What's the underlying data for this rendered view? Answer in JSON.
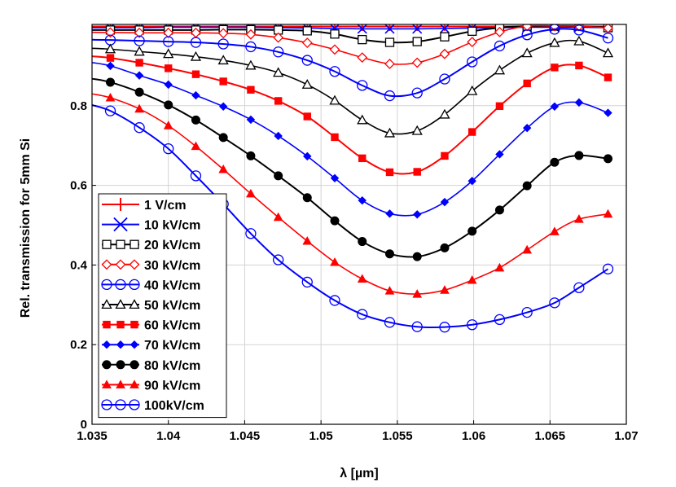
{
  "chart_data": {
    "type": "line",
    "title": "",
    "xlabel": "λ [µm]",
    "ylabel": "Rel. transmission for 5mm Si",
    "xlim": [
      1.035,
      1.07
    ],
    "ylim": [
      0,
      1.0
    ],
    "xticks": [
      1.035,
      1.04,
      1.045,
      1.05,
      1.055,
      1.06,
      1.065,
      1.07
    ],
    "xtick_labels": [
      "1.035",
      "1.04",
      "1.045",
      "1.05",
      "1.055",
      "1.06",
      "1.065",
      "1.07"
    ],
    "yticks": [
      0,
      0.2,
      0.4,
      0.6,
      0.8
    ],
    "ytick_labels": [
      "0",
      "0.2",
      "0.4",
      "0.6",
      "0.8"
    ],
    "grid": true,
    "legend_position": "bottom-left",
    "x": [
      1.0362,
      1.0381,
      1.04,
      1.0418,
      1.0436,
      1.0454,
      1.0472,
      1.0491,
      1.0509,
      1.0527,
      1.0545,
      1.0563,
      1.0581,
      1.0599,
      1.0617,
      1.0635,
      1.0653,
      1.0669,
      1.0688
    ],
    "series": [
      {
        "name": "1 V/cm",
        "color": "#ff0000",
        "marker": "plus",
        "values": [
          0.999,
          0.999,
          0.999,
          0.999,
          0.999,
          0.999,
          0.999,
          0.999,
          0.999,
          0.999,
          0.999,
          0.999,
          0.999,
          0.999,
          0.999,
          0.999,
          0.999,
          0.999,
          0.999
        ]
      },
      {
        "name": "10 kV/cm",
        "color": "#0000ff",
        "marker": "x",
        "values": [
          0.996,
          0.996,
          0.997,
          0.997,
          0.997,
          0.997,
          0.996,
          0.995,
          0.994,
          0.993,
          0.993,
          0.993,
          0.994,
          0.995,
          0.996,
          0.997,
          0.997,
          0.997,
          0.996
        ]
      },
      {
        "name": "20 kV/cm",
        "color": "#000000",
        "marker": "square-open",
        "values": [
          0.99,
          0.99,
          0.99,
          0.99,
          0.991,
          0.991,
          0.99,
          0.988,
          0.98,
          0.966,
          0.959,
          0.961,
          0.973,
          0.987,
          0.996,
          1.0,
          1.0,
          1.0,
          0.996
        ]
      },
      {
        "name": "30 kV/cm",
        "color": "#ff0000",
        "marker": "diamond-open",
        "values": [
          0.984,
          0.983,
          0.983,
          0.983,
          0.982,
          0.979,
          0.971,
          0.958,
          0.941,
          0.921,
          0.905,
          0.908,
          0.93,
          0.96,
          0.985,
          1.0,
          1.0,
          1.0,
          0.995
        ]
      },
      {
        "name": "40 kV/cm",
        "color": "#0000ff",
        "marker": "circle-open",
        "values": [
          0.965,
          0.963,
          0.961,
          0.959,
          0.955,
          0.948,
          0.935,
          0.914,
          0.886,
          0.851,
          0.825,
          0.832,
          0.867,
          0.91,
          0.95,
          0.978,
          0.992,
          0.99,
          0.97
        ]
      },
      {
        "name": "50 kV/cm",
        "color": "#000000",
        "marker": "triangle-open",
        "values": [
          0.942,
          0.936,
          0.93,
          0.923,
          0.914,
          0.901,
          0.883,
          0.853,
          0.813,
          0.764,
          0.731,
          0.737,
          0.778,
          0.837,
          0.889,
          0.932,
          0.958,
          0.962,
          0.932
        ]
      },
      {
        "name": "60 kV/cm",
        "color": "#ff0000",
        "marker": "square-filled",
        "values": [
          0.92,
          0.908,
          0.894,
          0.879,
          0.861,
          0.84,
          0.812,
          0.773,
          0.721,
          0.668,
          0.633,
          0.634,
          0.674,
          0.734,
          0.799,
          0.856,
          0.896,
          0.901,
          0.871
        ]
      },
      {
        "name": "70 kV/cm",
        "color": "#0000ff",
        "marker": "diamond-filled",
        "values": [
          0.9,
          0.876,
          0.853,
          0.826,
          0.798,
          0.765,
          0.724,
          0.673,
          0.618,
          0.562,
          0.529,
          0.527,
          0.558,
          0.611,
          0.678,
          0.744,
          0.798,
          0.808,
          0.782
        ]
      },
      {
        "name": "80 kV/cm",
        "color": "#000000",
        "marker": "circle-filled",
        "values": [
          0.859,
          0.834,
          0.802,
          0.764,
          0.72,
          0.674,
          0.624,
          0.569,
          0.511,
          0.459,
          0.428,
          0.421,
          0.443,
          0.485,
          0.538,
          0.599,
          0.658,
          0.675,
          0.667
        ]
      },
      {
        "name": "90 kV/cm",
        "color": "#ff0000",
        "marker": "triangle-filled",
        "values": [
          0.82,
          0.792,
          0.75,
          0.698,
          0.64,
          0.579,
          0.52,
          0.46,
          0.407,
          0.365,
          0.335,
          0.327,
          0.337,
          0.362,
          0.393,
          0.438,
          0.484,
          0.515,
          0.528
        ]
      },
      {
        "name": "100kV/cm",
        "color": "#0000ff",
        "marker": "circle-open",
        "values": [
          0.787,
          0.745,
          0.692,
          0.624,
          0.553,
          0.479,
          0.413,
          0.357,
          0.311,
          0.276,
          0.256,
          0.245,
          0.244,
          0.25,
          0.263,
          0.281,
          0.305,
          0.343,
          0.39
        ]
      }
    ]
  }
}
